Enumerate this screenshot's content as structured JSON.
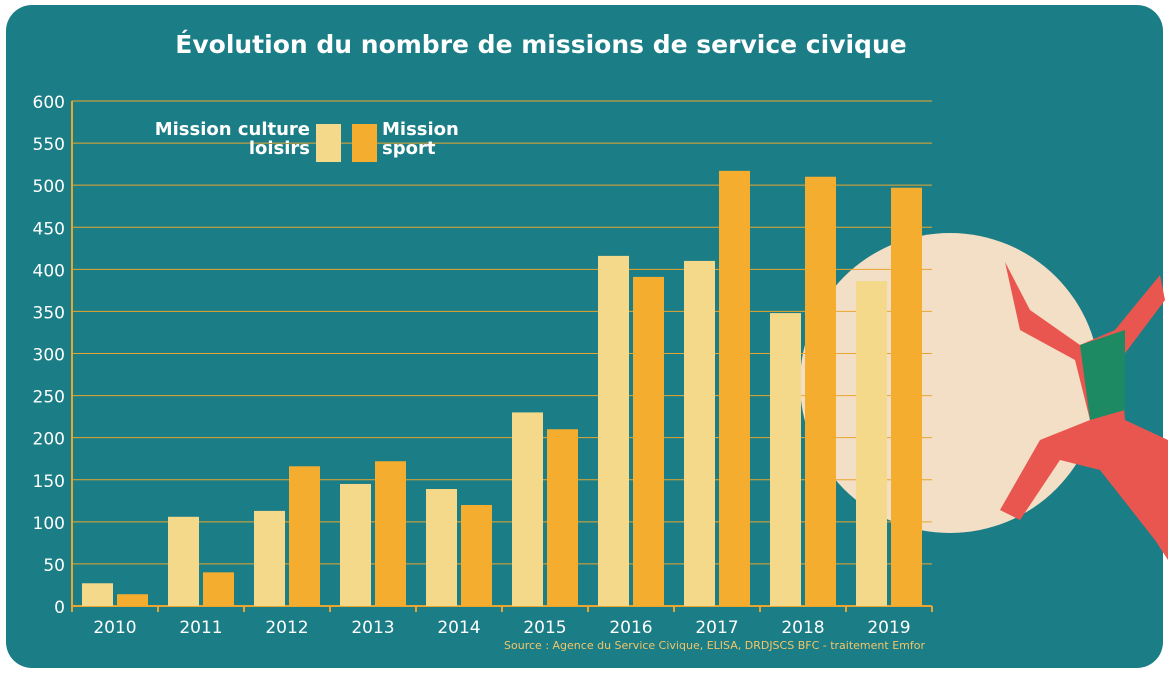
{
  "chart_data": {
    "type": "bar",
    "title": "Évolution du nombre de missions de service civique",
    "source": "Source : Agence du Service Civique, ELISA, DRDJSCS BFC - traitement Emfor",
    "categories": [
      "2010",
      "2011",
      "2012",
      "2013",
      "2014",
      "2015",
      "2016",
      "2017",
      "2018",
      "2019"
    ],
    "series": [
      {
        "name": "Mission culture loisirs",
        "color": "#f5d98a",
        "values": [
          27,
          106,
          113,
          145,
          139,
          230,
          416,
          410,
          348,
          386
        ]
      },
      {
        "name": "Mission sport",
        "color": "#f5ad30",
        "values": [
          14,
          40,
          166,
          172,
          120,
          210,
          391,
          517,
          510,
          497
        ]
      }
    ],
    "ylim": [
      0,
      600
    ],
    "yticks": [
      0,
      50,
      100,
      150,
      200,
      250,
      300,
      350,
      400,
      450,
      500,
      550,
      600
    ],
    "grid": true
  }
}
